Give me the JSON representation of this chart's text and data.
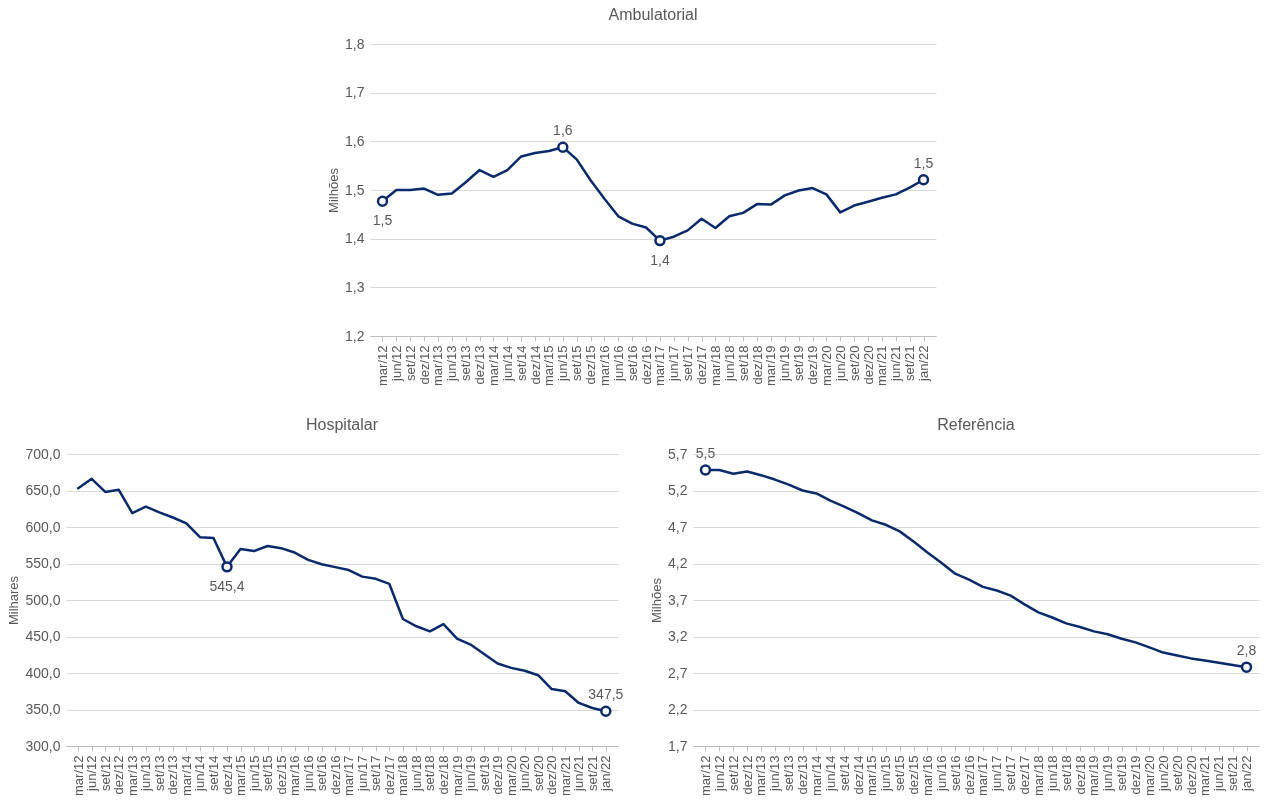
{
  "chart_data": [
    {
      "type": "line",
      "title": "Ambulatorial",
      "ylabel": "Milhões",
      "categories": [
        "mar/12",
        "jun/12",
        "set/12",
        "dez/12",
        "mar/13",
        "jun/13",
        "set/13",
        "dez/13",
        "mar/14",
        "jun/14",
        "set/14",
        "dez/14",
        "mar/15",
        "jun/15",
        "set/15",
        "dez/15",
        "mar/16",
        "jun/16",
        "set/16",
        "dez/16",
        "mar/17",
        "jun/17",
        "set/17",
        "dez/17",
        "mar/18",
        "jun/18",
        "set/18",
        "dez/18",
        "mar/19",
        "jun/19",
        "set/19",
        "dez/19",
        "mar/20",
        "jun/20",
        "set/20",
        "dez/20",
        "mar/21",
        "jun/21",
        "set/21",
        "jan/22"
      ],
      "series": [
        {
          "color": "#0b2a6b",
          "values": [
            1.477,
            1.5,
            1.5,
            1.503,
            1.49,
            1.493,
            1.516,
            1.541,
            1.527,
            1.541,
            1.569,
            1.576,
            1.58,
            1.588,
            1.563,
            1.52,
            1.482,
            1.446,
            1.431,
            1.423,
            1.396,
            1.404,
            1.417,
            1.441,
            1.422,
            1.446,
            1.453,
            1.471,
            1.47,
            1.489,
            1.499,
            1.504,
            1.491,
            1.454,
            1.468,
            1.476,
            1.484,
            1.491,
            1.505,
            1.521
          ],
          "value_labels": [
            "1,5",
            null,
            null,
            null,
            null,
            null,
            null,
            null,
            null,
            null,
            null,
            null,
            null,
            "1,6",
            null,
            null,
            null,
            null,
            null,
            null,
            "1,4",
            null,
            null,
            null,
            null,
            null,
            null,
            null,
            null,
            null,
            null,
            null,
            null,
            null,
            null,
            null,
            null,
            null,
            null,
            "1,5"
          ]
        }
      ],
      "ylim": [
        1.2,
        1.8
      ],
      "yticks": [
        {
          "value": 1.2,
          "label": "1,2"
        },
        {
          "value": 1.3,
          "label": "1,3"
        },
        {
          "value": 1.4,
          "label": "1,4"
        },
        {
          "value": 1.5,
          "label": "1,5"
        },
        {
          "value": 1.6,
          "label": "1,6"
        },
        {
          "value": 1.7,
          "label": "1,7"
        },
        {
          "value": 1.8,
          "label": "1,8"
        }
      ],
      "grid": "y"
    },
    {
      "type": "line",
      "title": "Hospitalar",
      "ylabel": "Milhares",
      "categories": [
        "mar/12",
        "jun/12",
        "set/12",
        "dez/12",
        "mar/13",
        "jun/13",
        "set/13",
        "dez/13",
        "mar/14",
        "jun/14",
        "set/14",
        "dez/14",
        "mar/15",
        "jun/15",
        "set/15",
        "dez/15",
        "mar/16",
        "jun/16",
        "set/16",
        "dez/16",
        "mar/17",
        "jun/17",
        "set/17",
        "dez/17",
        "mar/18",
        "jun/18",
        "set/18",
        "dez/18",
        "mar/19",
        "jun/19",
        "set/19",
        "dez/19",
        "mar/20",
        "jun/20",
        "set/20",
        "dez/20",
        "mar/21",
        "jun/21",
        "set/21",
        "jan/22"
      ],
      "series": [
        {
          "color": "#0b2a6b",
          "values": [
            653,
            666,
            648,
            651,
            619,
            628,
            620,
            613,
            605,
            586,
            585,
            545.4,
            570,
            567,
            574,
            571,
            565,
            555,
            549,
            545,
            541,
            532,
            529,
            522,
            474,
            464,
            457,
            467,
            447,
            439,
            426,
            413,
            407,
            403,
            397,
            378,
            375,
            359,
            352,
            347.5
          ],
          "value_labels": [
            null,
            null,
            null,
            null,
            null,
            null,
            null,
            null,
            null,
            null,
            null,
            "545,4",
            null,
            null,
            null,
            null,
            null,
            null,
            null,
            null,
            null,
            null,
            null,
            null,
            null,
            null,
            null,
            null,
            null,
            null,
            null,
            null,
            null,
            null,
            null,
            null,
            null,
            null,
            null,
            "347,5"
          ]
        }
      ],
      "ylim": [
        300,
        700
      ],
      "yticks": [
        {
          "value": 300,
          "label": "300,0"
        },
        {
          "value": 350,
          "label": "350,0"
        },
        {
          "value": 400,
          "label": "400,0"
        },
        {
          "value": 450,
          "label": "450,0"
        },
        {
          "value": 500,
          "label": "500,0"
        },
        {
          "value": 550,
          "label": "550,0"
        },
        {
          "value": 600,
          "label": "600,0"
        },
        {
          "value": 650,
          "label": "650,0"
        },
        {
          "value": 700,
          "label": "700,0"
        }
      ],
      "grid": "y"
    },
    {
      "type": "line",
      "title": "Referência",
      "ylabel": "Milhões",
      "categories": [
        "mar/12",
        "jun/12",
        "set/12",
        "dez/12",
        "mar/13",
        "jun/13",
        "set/13",
        "dez/13",
        "mar/14",
        "jun/14",
        "set/14",
        "dez/14",
        "mar/15",
        "jun/15",
        "set/15",
        "dez/15",
        "mar/16",
        "jun/16",
        "set/16",
        "dez/16",
        "mar/17",
        "jun/17",
        "set/17",
        "dez/17",
        "mar/18",
        "jun/18",
        "set/18",
        "dez/18",
        "mar/19",
        "jun/19",
        "set/19",
        "dez/19",
        "mar/20",
        "jun/20",
        "set/20",
        "dez/20",
        "mar/21",
        "jun/21",
        "set/21",
        "jan/22"
      ],
      "series": [
        {
          "color": "#0b2a6b",
          "values": [
            5.48,
            5.48,
            5.43,
            5.46,
            5.41,
            5.35,
            5.28,
            5.2,
            5.16,
            5.06,
            4.98,
            4.89,
            4.79,
            4.73,
            4.64,
            4.5,
            4.35,
            4.21,
            4.06,
            3.98,
            3.88,
            3.83,
            3.76,
            3.64,
            3.53,
            3.46,
            3.38,
            3.33,
            3.27,
            3.23,
            3.17,
            3.12,
            3.05,
            2.98,
            2.94,
            2.9,
            2.87,
            2.84,
            2.81,
            2.78
          ],
          "value_labels": [
            "5,5",
            null,
            null,
            null,
            null,
            null,
            null,
            null,
            null,
            null,
            null,
            null,
            null,
            null,
            null,
            null,
            null,
            null,
            null,
            null,
            null,
            null,
            null,
            null,
            null,
            null,
            null,
            null,
            null,
            null,
            null,
            null,
            null,
            null,
            null,
            null,
            null,
            null,
            null,
            "2,8"
          ]
        }
      ],
      "ylim": [
        1.7,
        5.7
      ],
      "yticks": [
        {
          "value": 1.7,
          "label": "1,7"
        },
        {
          "value": 2.2,
          "label": "2,2"
        },
        {
          "value": 2.7,
          "label": "2,7"
        },
        {
          "value": 3.2,
          "label": "3,2"
        },
        {
          "value": 3.7,
          "label": "3,7"
        },
        {
          "value": 4.2,
          "label": "4,2"
        },
        {
          "value": 4.7,
          "label": "4,7"
        },
        {
          "value": 5.2,
          "label": "5,2"
        },
        {
          "value": 5.7,
          "label": "5,7"
        }
      ],
      "grid": "y"
    }
  ]
}
